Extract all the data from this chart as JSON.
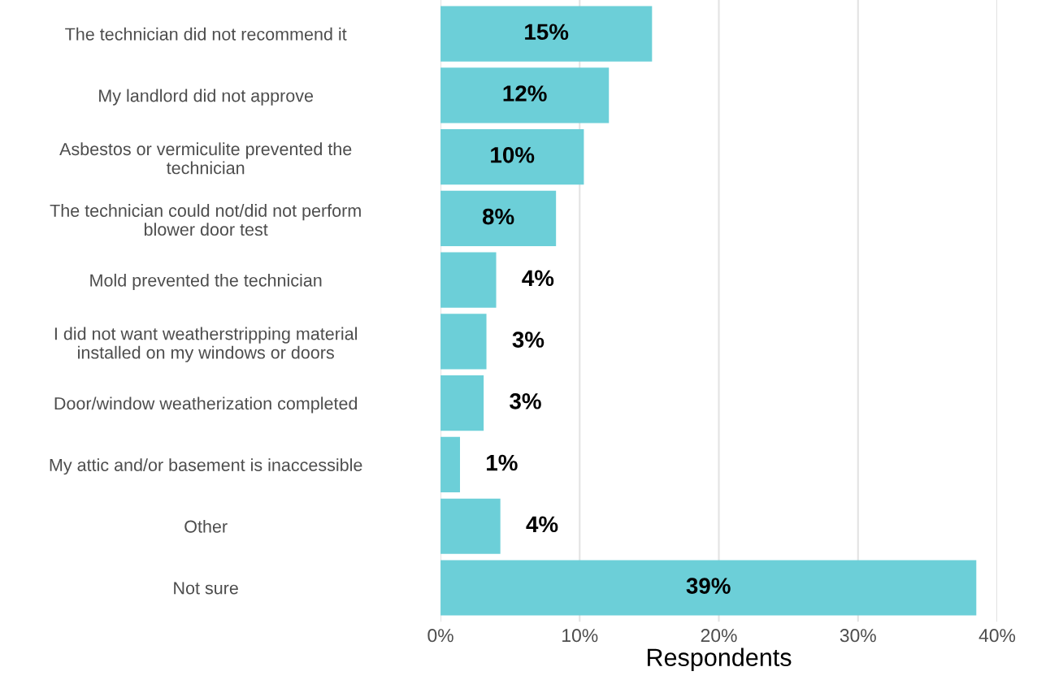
{
  "chart_data": {
    "type": "bar",
    "orientation": "horizontal",
    "xlabel": "Respondents",
    "categories": [
      "The technician did not recommend it",
      "My landlord did not approve",
      "Asbestos or vermiculite prevented the\ntechnician",
      "The technician could not/did not perform\nblower door test",
      "Mold prevented the technician",
      "I did not want weatherstripping material\ninstalled on my windows or doors",
      "Door/window weatherization completed",
      "My attic and/or basement is inaccessible",
      "Other",
      "Not sure"
    ],
    "values": [
      15.2,
      12.1,
      10.3,
      8.3,
      4.0,
      3.3,
      3.1,
      1.4,
      4.3,
      38.5
    ],
    "value_labels": [
      "15%",
      "12%",
      "10%",
      "8%",
      "4%",
      "3%",
      "3%",
      "1%",
      "4%",
      "39%"
    ],
    "color": "#6ccfd8",
    "xlim": [
      0,
      40
    ],
    "xticks": [
      {
        "value": 0,
        "label": "0%"
      },
      {
        "value": 10,
        "label": "10%"
      },
      {
        "value": 20,
        "label": "20%"
      },
      {
        "value": 30,
        "label": "30%"
      },
      {
        "value": 40,
        "label": "40%"
      }
    ],
    "grid": "x"
  }
}
